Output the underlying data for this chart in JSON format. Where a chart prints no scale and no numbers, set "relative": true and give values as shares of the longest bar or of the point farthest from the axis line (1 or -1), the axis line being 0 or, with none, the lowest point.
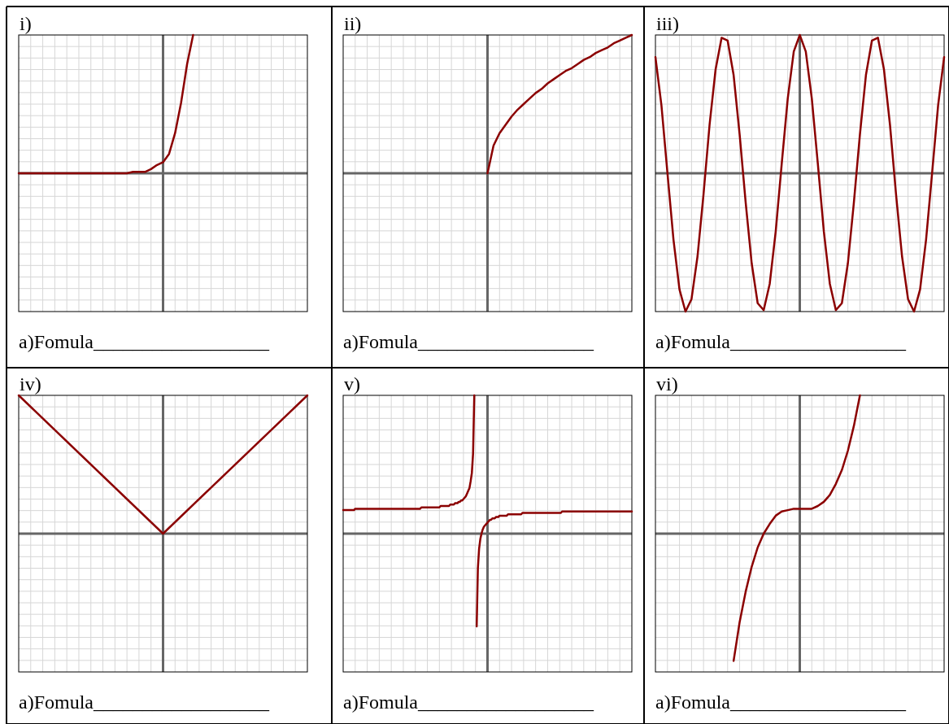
{
  "chart_data": [
    {
      "type": "line",
      "title": "i)",
      "annotations": [
        "a)Fomula__________________"
      ],
      "relative": true,
      "grid": true,
      "color": "#8b0000",
      "categories": [
        null,
        null,
        null,
        null,
        null,
        null,
        null,
        null,
        null,
        null,
        null,
        null,
        null,
        null,
        null,
        null,
        null,
        null,
        null,
        null,
        null,
        null,
        null,
        null,
        null,
        null,
        null,
        null,
        null,
        null,
        null,
        null,
        null,
        null,
        null,
        null,
        null,
        null,
        null,
        null,
        null,
        null,
        null,
        null,
        null,
        null,
        null,
        null,
        null
      ],
      "values": [
        0,
        0,
        0,
        0,
        0,
        0,
        0,
        0,
        0,
        0,
        0,
        0,
        0,
        0,
        0,
        0,
        0,
        0,
        0,
        0.01,
        0.01,
        0.01,
        0.03,
        0.06,
        0.08,
        0.14,
        0.29,
        0.51,
        0.79,
        1,
        null,
        null,
        null,
        null,
        null,
        null,
        null,
        null,
        null,
        null,
        null,
        null,
        null,
        null,
        null,
        null,
        null,
        null,
        null
      ]
    },
    {
      "type": "line",
      "title": "ii)",
      "annotations": [
        "a)Fomula__________________"
      ],
      "relative": true,
      "grid": true,
      "color": "#8b0000",
      "categories": [
        null,
        null,
        null,
        null,
        null,
        null,
        null,
        null,
        null,
        null,
        null,
        null,
        null,
        null,
        null,
        null,
        null,
        null,
        null,
        null,
        null,
        null,
        null,
        null,
        null,
        null,
        null,
        null,
        null,
        null,
        null,
        null,
        null,
        null,
        null,
        null,
        null,
        null,
        null,
        null,
        null,
        null,
        null,
        null,
        null,
        null,
        null,
        null,
        null
      ],
      "values": [
        null,
        null,
        null,
        null,
        null,
        null,
        null,
        null,
        null,
        null,
        null,
        null,
        null,
        null,
        null,
        null,
        null,
        null,
        null,
        null,
        null,
        null,
        null,
        null,
        0,
        0.2,
        0.29,
        0.35,
        0.41,
        0.46,
        0.5,
        0.54,
        0.58,
        0.61,
        0.65,
        0.68,
        0.71,
        0.74,
        0.76,
        0.79,
        0.82,
        0.84,
        0.87,
        0.89,
        0.91,
        0.94,
        0.96,
        0.98,
        1
      ]
    },
    {
      "type": "line",
      "title": "iii)",
      "annotations": [
        "a)Fomula__________________"
      ],
      "relative": true,
      "grid": true,
      "color": "#8b0000",
      "categories": [
        null,
        null,
        null,
        null,
        null,
        null,
        null,
        null,
        null,
        null,
        null,
        null,
        null,
        null,
        null,
        null,
        null,
        null,
        null,
        null,
        null,
        null,
        null,
        null,
        null,
        null,
        null,
        null,
        null,
        null,
        null,
        null,
        null,
        null,
        null,
        null,
        null,
        null,
        null,
        null,
        null,
        null,
        null,
        null,
        null,
        null,
        null,
        null,
        null
      ],
      "values": [
        0.84,
        0.49,
        0,
        -0.48,
        -0.84,
        -1,
        -0.91,
        -0.6,
        -0.15,
        0.35,
        0.75,
        0.98,
        0.96,
        0.71,
        0.28,
        -0.21,
        -0.65,
        -0.94,
        -0.99,
        -0.8,
        -0.42,
        0.07,
        0.54,
        0.88,
        1,
        0.88,
        0.54,
        0.07,
        -0.42,
        -0.8,
        -0.99,
        -0.94,
        -0.65,
        -0.21,
        0.28,
        0.71,
        0.96,
        0.98,
        0.75,
        0.35,
        -0.15,
        -0.6,
        -0.91,
        -1,
        -0.84,
        -0.48,
        0,
        0.49,
        0.84
      ]
    },
    {
      "type": "line",
      "title": "iv)",
      "annotations": [
        "a)Fomula__________________"
      ],
      "relative": true,
      "grid": true,
      "color": "#8b0000",
      "categories": [
        null,
        null,
        null
      ],
      "values": [
        1,
        0,
        1
      ]
    },
    {
      "type": "line",
      "title": "v)",
      "annotations": [
        "a)Fomula__________________"
      ],
      "relative": true,
      "grid": true,
      "categories": [
        null,
        null,
        null,
        null,
        null,
        null,
        null,
        null,
        null,
        null,
        null,
        null,
        null,
        null,
        null,
        null,
        null,
        null,
        null,
        null,
        null,
        null,
        null,
        null,
        null,
        null,
        null,
        null,
        null,
        null,
        null,
        null,
        null,
        null,
        null,
        null,
        null,
        null,
        null,
        null,
        null,
        null,
        null,
        null,
        null,
        null,
        null,
        null,
        null,
        null,
        null,
        null,
        null,
        null,
        null,
        null,
        null,
        null,
        null,
        null,
        null,
        null,
        null,
        null,
        null,
        null,
        null,
        null,
        null,
        null,
        null,
        null,
        null,
        null,
        null,
        null,
        null,
        null,
        null,
        null,
        null,
        null,
        null,
        null,
        null,
        null,
        null,
        null,
        null,
        null,
        null,
        null,
        null,
        null,
        null,
        null,
        null,
        null,
        null,
        null,
        null,
        null,
        null,
        null,
        null,
        null,
        null,
        null,
        null,
        null,
        null,
        null,
        null,
        null,
        null,
        null,
        null,
        null,
        null,
        null,
        null,
        null,
        null,
        null,
        null,
        null,
        null,
        null,
        null,
        null,
        null,
        null,
        null,
        null,
        null,
        null,
        null,
        null,
        null,
        null,
        null,
        null,
        null,
        null,
        null,
        null,
        null,
        null,
        null,
        null,
        null,
        null,
        null,
        null,
        null,
        null,
        null,
        null,
        null,
        null,
        null,
        null,
        null,
        null,
        null,
        null,
        null,
        null,
        null,
        null,
        null,
        null,
        null,
        null,
        null,
        null,
        null,
        null,
        null,
        null,
        null,
        null,
        null,
        null,
        null,
        null,
        null,
        null,
        null,
        null,
        null,
        null,
        null,
        null,
        null,
        null,
        null,
        null,
        null,
        null,
        null,
        null,
        null,
        null,
        null,
        null,
        null,
        null,
        null,
        null,
        null,
        null,
        null,
        null,
        null,
        null,
        null,
        null,
        null,
        null,
        null,
        null,
        null,
        null,
        null,
        null,
        null,
        null,
        null,
        null,
        null,
        null,
        null,
        null,
        null,
        null,
        null,
        null,
        null,
        null,
        null
      ],
      "series": [
        {
          "color": "#8b0000",
          "values": [
            0.17,
            0.17,
            0.17,
            0.17,
            0.17,
            0.17,
            0.17,
            0.17,
            0.17,
            0.17,
            0.18,
            0.18,
            0.18,
            0.18,
            0.18,
            0.18,
            0.18,
            0.18,
            0.18,
            0.18,
            0.18,
            0.18,
            0.18,
            0.18,
            0.18,
            0.18,
            0.18,
            0.18,
            0.18,
            0.18,
            0.18,
            0.18,
            0.18,
            0.18,
            0.18,
            0.18,
            0.18,
            0.18,
            0.18,
            0.18,
            0.18,
            0.18,
            0.18,
            0.18,
            0.18,
            0.18,
            0.18,
            0.18,
            0.18,
            0.18,
            0.18,
            0.18,
            0.18,
            0.18,
            0.18,
            0.18,
            0.18,
            0.18,
            0.18,
            0.18,
            0.18,
            0.18,
            0.18,
            0.18,
            0.18,
            0.19,
            0.19,
            0.19,
            0.19,
            0.19,
            0.19,
            0.19,
            0.19,
            0.19,
            0.19,
            0.19,
            0.19,
            0.19,
            0.19,
            0.19,
            0.19,
            0.2,
            0.2,
            0.2,
            0.2,
            0.2,
            0.2,
            0.2,
            0.2,
            0.21,
            0.21,
            0.21,
            0.21,
            0.22,
            0.22,
            0.22,
            0.23,
            0.23,
            0.24,
            0.24,
            0.25,
            0.26,
            0.27,
            0.29,
            0.31,
            0.33,
            0.38,
            0.44,
            0.58,
            1,
            null,
            null,
            null,
            null,
            null,
            null,
            null,
            null,
            null,
            null,
            null,
            null,
            null,
            null,
            null,
            null,
            null,
            null,
            null,
            null,
            null,
            null,
            null,
            null,
            null,
            null,
            null,
            null,
            null,
            null,
            null,
            null,
            null,
            null,
            null,
            null,
            null,
            null,
            null,
            null,
            null,
            null,
            null,
            null,
            null,
            null,
            null,
            null,
            null,
            null,
            null,
            null,
            null,
            null,
            null,
            null,
            null,
            null,
            null,
            null,
            null,
            null,
            null,
            null,
            null,
            null,
            null,
            null,
            null,
            null,
            null,
            null,
            null,
            null,
            null,
            null,
            null,
            null,
            null,
            null,
            null,
            null,
            null,
            null,
            null,
            null,
            null,
            null,
            null,
            null,
            null,
            null,
            null,
            null,
            null,
            null,
            null,
            null,
            null,
            null,
            null,
            null,
            null,
            null,
            null,
            null,
            null,
            null,
            null,
            null,
            null,
            null,
            null,
            null,
            null,
            null,
            null,
            null,
            null,
            null,
            null,
            null,
            null,
            null,
            null,
            null,
            null,
            null,
            null,
            null,
            null
          ]
        },
        {
          "color": "#8b0000",
          "values": [
            null,
            null,
            null,
            null,
            null,
            null,
            null,
            null,
            null,
            null,
            null,
            null,
            null,
            null,
            null,
            null,
            null,
            null,
            null,
            null,
            null,
            null,
            null,
            null,
            null,
            null,
            null,
            null,
            null,
            null,
            null,
            null,
            null,
            null,
            null,
            null,
            null,
            null,
            null,
            null,
            null,
            null,
            null,
            null,
            null,
            null,
            null,
            null,
            null,
            null,
            null,
            null,
            null,
            null,
            null,
            null,
            null,
            null,
            null,
            null,
            null,
            null,
            null,
            null,
            null,
            null,
            null,
            null,
            null,
            null,
            null,
            null,
            null,
            null,
            null,
            null,
            null,
            null,
            null,
            null,
            null,
            null,
            null,
            null,
            null,
            null,
            null,
            null,
            null,
            null,
            null,
            null,
            null,
            null,
            null,
            null,
            null,
            null,
            null,
            null,
            null,
            null,
            null,
            null,
            null,
            null,
            null,
            null,
            null,
            null,
            null,
            -0.67,
            -0.25,
            -0.11,
            -0.04,
            0,
            0.03,
            0.05,
            0.06,
            0.07,
            0.08,
            0.09,
            0.1,
            0.1,
            0.11,
            0.11,
            0.11,
            0.12,
            0.12,
            0.12,
            0.13,
            0.13,
            0.13,
            0.13,
            0.13,
            0.13,
            0.13,
            0.14,
            0.14,
            0.14,
            0.14,
            0.14,
            0.14,
            0.14,
            0.14,
            0.14,
            0.14,
            0.14,
            0.14,
            0.15,
            0.15,
            0.15,
            0.15,
            0.15,
            0.15,
            0.15,
            0.15,
            0.15,
            0.15,
            0.15,
            0.15,
            0.15,
            0.15,
            0.15,
            0.15,
            0.15,
            0.15,
            0.15,
            0.15,
            0.15,
            0.15,
            0.15,
            0.15,
            0.15,
            0.15,
            0.15,
            0.15,
            0.15,
            0.15,
            0.15,
            0.15,
            0.15,
            0.16,
            0.16,
            0.16,
            0.16,
            0.16,
            0.16,
            0.16,
            0.16,
            0.16,
            0.16,
            0.16,
            0.16,
            0.16,
            0.16,
            0.16,
            0.16,
            0.16,
            0.16,
            0.16,
            0.16,
            0.16,
            0.16,
            0.16,
            0.16,
            0.16,
            0.16,
            0.16,
            0.16,
            0.16,
            0.16,
            0.16,
            0.16,
            0.16,
            0.16,
            0.16,
            0.16,
            0.16,
            0.16,
            0.16,
            0.16,
            0.16,
            0.16,
            0.16,
            0.16,
            0.16,
            0.16,
            0.16,
            0.16,
            0.16,
            0.16,
            0.16,
            0.16,
            0.16,
            0.16,
            0.16,
            0.16,
            0.16,
            0.16,
            0.16
          ]
        }
      ]
    },
    {
      "type": "line",
      "title": "vi)",
      "annotations": [
        "a)Fomula__________________"
      ],
      "relative": true,
      "grid": true,
      "color": "#8b0000",
      "categories": [
        null,
        null,
        null,
        null,
        null,
        null,
        null,
        null,
        null,
        null,
        null,
        null,
        null,
        null,
        null,
        null,
        null,
        null,
        null,
        null,
        null,
        null,
        null,
        null,
        null,
        null,
        null,
        null,
        null,
        null,
        null,
        null,
        null,
        null,
        null,
        null,
        null,
        null,
        null,
        null,
        null,
        null,
        null,
        null,
        null,
        null,
        null,
        null,
        null
      ],
      "values": [
        null,
        null,
        null,
        null,
        null,
        null,
        null,
        null,
        null,
        null,
        null,
        null,
        null,
        -0.92,
        -0.64,
        -0.42,
        -0.24,
        -0.1,
        0,
        0.07,
        0.13,
        0.16,
        0.17,
        0.18,
        0.18,
        0.18,
        0.18,
        0.2,
        0.23,
        0.28,
        0.36,
        0.46,
        0.6,
        0.78,
        1,
        null,
        null,
        null,
        null,
        null,
        null,
        null,
        null,
        null,
        null,
        null,
        null,
        null,
        null
      ]
    }
  ]
}
